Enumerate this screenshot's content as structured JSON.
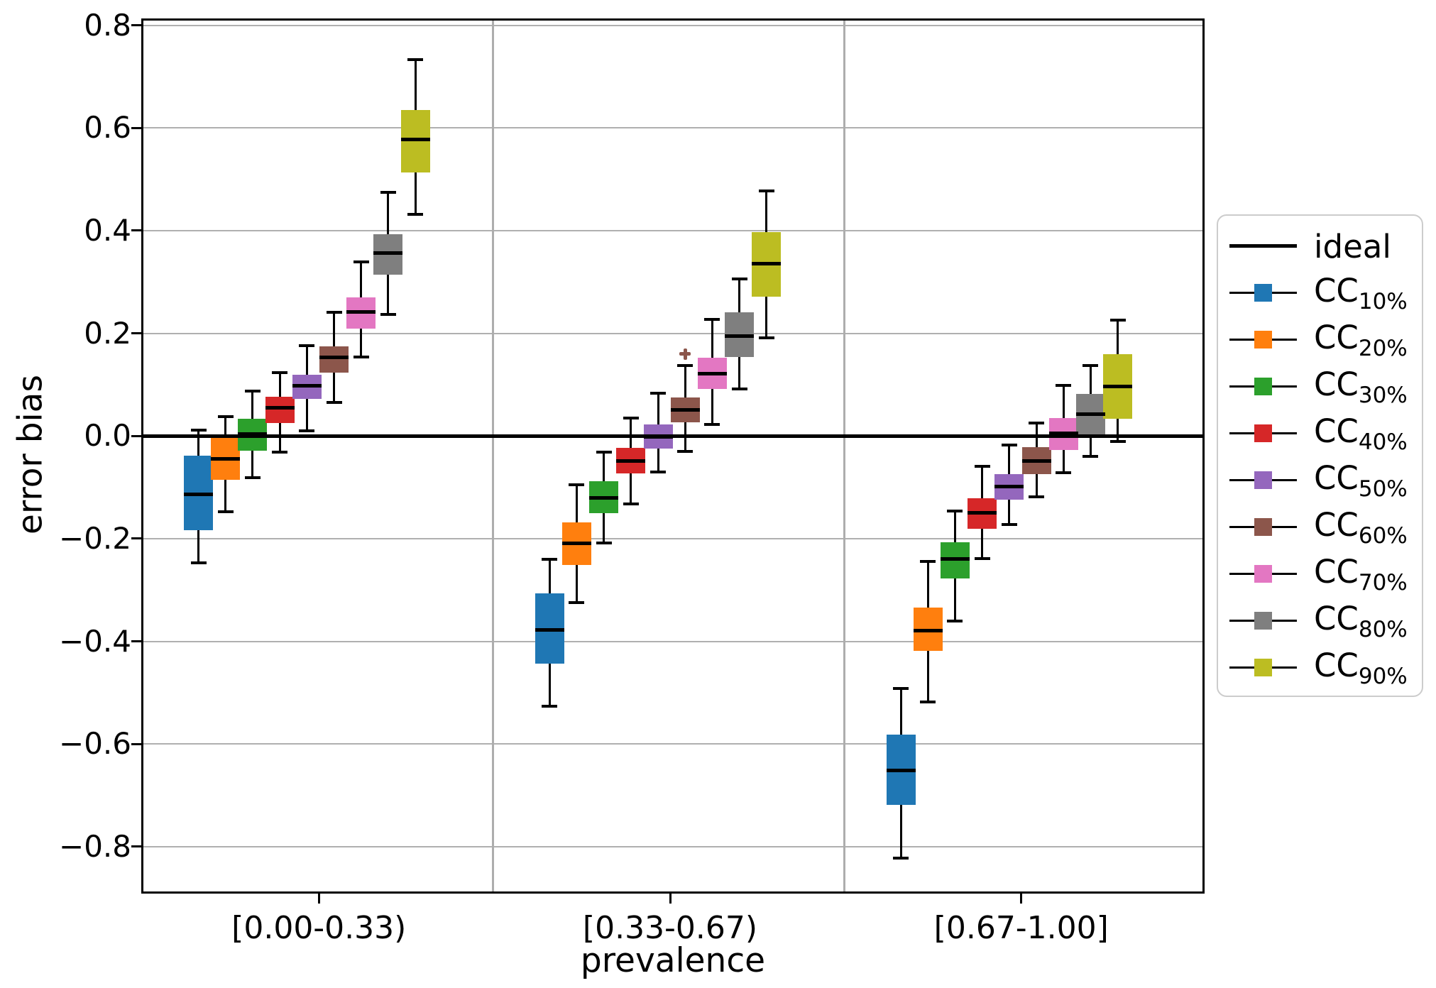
{
  "chart_data": {
    "type": "boxplot",
    "title": "",
    "xlabel": "prevalence",
    "ylabel": "error bias",
    "ylim": [
      -0.89,
      0.812
    ],
    "grid": "horizontal-gray",
    "legend_position": "right-outside",
    "yticks": [
      {
        "v": 0.8,
        "label": "0.8"
      },
      {
        "v": 0.6,
        "label": "0.6"
      },
      {
        "v": 0.4,
        "label": "0.4"
      },
      {
        "v": 0.2,
        "label": "0.2"
      },
      {
        "v": 0.0,
        "label": "0.0"
      },
      {
        "v": -0.2,
        "label": "−0.2"
      },
      {
        "v": -0.4,
        "label": "−0.4"
      },
      {
        "v": -0.6,
        "label": "−0.6"
      },
      {
        "v": -0.8,
        "label": "−0.8"
      }
    ],
    "categories": [
      "[0.00-0.33)",
      "[0.33-0.67)",
      "[0.67-1.00]"
    ],
    "ideal": {
      "label": "ideal",
      "value": 0,
      "color": "#000000"
    },
    "series": [
      {
        "label_main": "CC",
        "label_sub": "10%",
        "color": "#1f77b4",
        "boxes": [
          {
            "whislo": -0.247,
            "q1": -0.183,
            "med": -0.114,
            "q3": -0.038,
            "whishi": 0.011,
            "fliers": []
          },
          {
            "whislo": -0.526,
            "q1": -0.444,
            "med": -0.378,
            "q3": -0.307,
            "whishi": -0.24,
            "fliers": []
          },
          {
            "whislo": -0.822,
            "q1": -0.719,
            "med": -0.652,
            "q3": -0.582,
            "whishi": -0.492,
            "fliers": []
          }
        ]
      },
      {
        "label_main": "CC",
        "label_sub": "20%",
        "color": "#ff7f0e",
        "boxes": [
          {
            "whislo": -0.148,
            "q1": -0.086,
            "med": -0.045,
            "q3": -0.002,
            "whishi": 0.038,
            "fliers": []
          },
          {
            "whislo": -0.324,
            "q1": -0.251,
            "med": -0.209,
            "q3": -0.168,
            "whishi": -0.095,
            "fliers": []
          },
          {
            "whislo": -0.518,
            "q1": -0.418,
            "med": -0.379,
            "q3": -0.334,
            "whishi": -0.244,
            "fliers": []
          }
        ]
      },
      {
        "label_main": "CC",
        "label_sub": "30%",
        "color": "#2ca02c",
        "boxes": [
          {
            "whislo": -0.081,
            "q1": -0.028,
            "med": 0.004,
            "q3": 0.034,
            "whishi": 0.087,
            "fliers": []
          },
          {
            "whislo": -0.208,
            "q1": -0.15,
            "med": -0.12,
            "q3": -0.088,
            "whishi": -0.031,
            "fliers": []
          },
          {
            "whislo": -0.36,
            "q1": -0.277,
            "med": -0.24,
            "q3": -0.207,
            "whishi": -0.146,
            "fliers": []
          }
        ]
      },
      {
        "label_main": "CC",
        "label_sub": "40%",
        "color": "#d62728",
        "boxes": [
          {
            "whislo": -0.031,
            "q1": 0.025,
            "med": 0.055,
            "q3": 0.077,
            "whishi": 0.124,
            "fliers": []
          },
          {
            "whislo": -0.132,
            "q1": -0.073,
            "med": -0.048,
            "q3": -0.023,
            "whishi": 0.035,
            "fliers": []
          },
          {
            "whislo": -0.239,
            "q1": -0.181,
            "med": -0.15,
            "q3": -0.121,
            "whishi": -0.059,
            "fliers": []
          }
        ]
      },
      {
        "label_main": "CC",
        "label_sub": "50%",
        "color": "#9467bd",
        "boxes": [
          {
            "whislo": 0.01,
            "q1": 0.072,
            "med": 0.098,
            "q3": 0.12,
            "whishi": 0.176,
            "fliers": []
          },
          {
            "whislo": -0.07,
            "q1": -0.024,
            "med": -0.001,
            "q3": 0.023,
            "whishi": 0.084,
            "fliers": []
          },
          {
            "whislo": -0.172,
            "q1": -0.124,
            "med": -0.098,
            "q3": -0.074,
            "whishi": -0.018,
            "fliers": []
          }
        ]
      },
      {
        "label_main": "CC",
        "label_sub": "60%",
        "color": "#8c564b",
        "boxes": [
          {
            "whislo": 0.065,
            "q1": 0.124,
            "med": 0.153,
            "q3": 0.175,
            "whishi": 0.241,
            "fliers": []
          },
          {
            "whislo": -0.03,
            "q1": 0.027,
            "med": 0.051,
            "q3": 0.075,
            "whishi": 0.137,
            "fliers": [
              0.16
            ]
          },
          {
            "whislo": -0.119,
            "q1": -0.074,
            "med": -0.048,
            "q3": -0.022,
            "whishi": 0.025,
            "fliers": []
          }
        ]
      },
      {
        "label_main": "CC",
        "label_sub": "70%",
        "color": "#e377c2",
        "boxes": [
          {
            "whislo": 0.154,
            "q1": 0.209,
            "med": 0.241,
            "q3": 0.27,
            "whishi": 0.339,
            "fliers": []
          },
          {
            "whislo": 0.023,
            "q1": 0.092,
            "med": 0.122,
            "q3": 0.153,
            "whishi": 0.227,
            "fliers": []
          },
          {
            "whislo": -0.071,
            "q1": -0.027,
            "med": 0.005,
            "q3": 0.035,
            "whishi": 0.099,
            "fliers": []
          }
        ]
      },
      {
        "label_main": "CC",
        "label_sub": "80%",
        "color": "#7f7f7f",
        "boxes": [
          {
            "whislo": 0.237,
            "q1": 0.314,
            "med": 0.357,
            "q3": 0.393,
            "whishi": 0.475,
            "fliers": []
          },
          {
            "whislo": 0.092,
            "q1": 0.154,
            "med": 0.195,
            "q3": 0.241,
            "whishi": 0.306,
            "fliers": []
          },
          {
            "whislo": -0.04,
            "q1": 0.002,
            "med": 0.042,
            "q3": 0.082,
            "whishi": 0.137,
            "fliers": []
          }
        ]
      },
      {
        "label_main": "CC",
        "label_sub": "90%",
        "color": "#bcbd22",
        "boxes": [
          {
            "whislo": 0.432,
            "q1": 0.513,
            "med": 0.577,
            "q3": 0.635,
            "whishi": 0.733,
            "fliers": []
          },
          {
            "whislo": 0.191,
            "q1": 0.271,
            "med": 0.336,
            "q3": 0.397,
            "whishi": 0.477,
            "fliers": []
          },
          {
            "whislo": -0.011,
            "q1": 0.033,
            "med": 0.097,
            "q3": 0.159,
            "whishi": 0.226,
            "fliers": []
          }
        ]
      }
    ]
  }
}
